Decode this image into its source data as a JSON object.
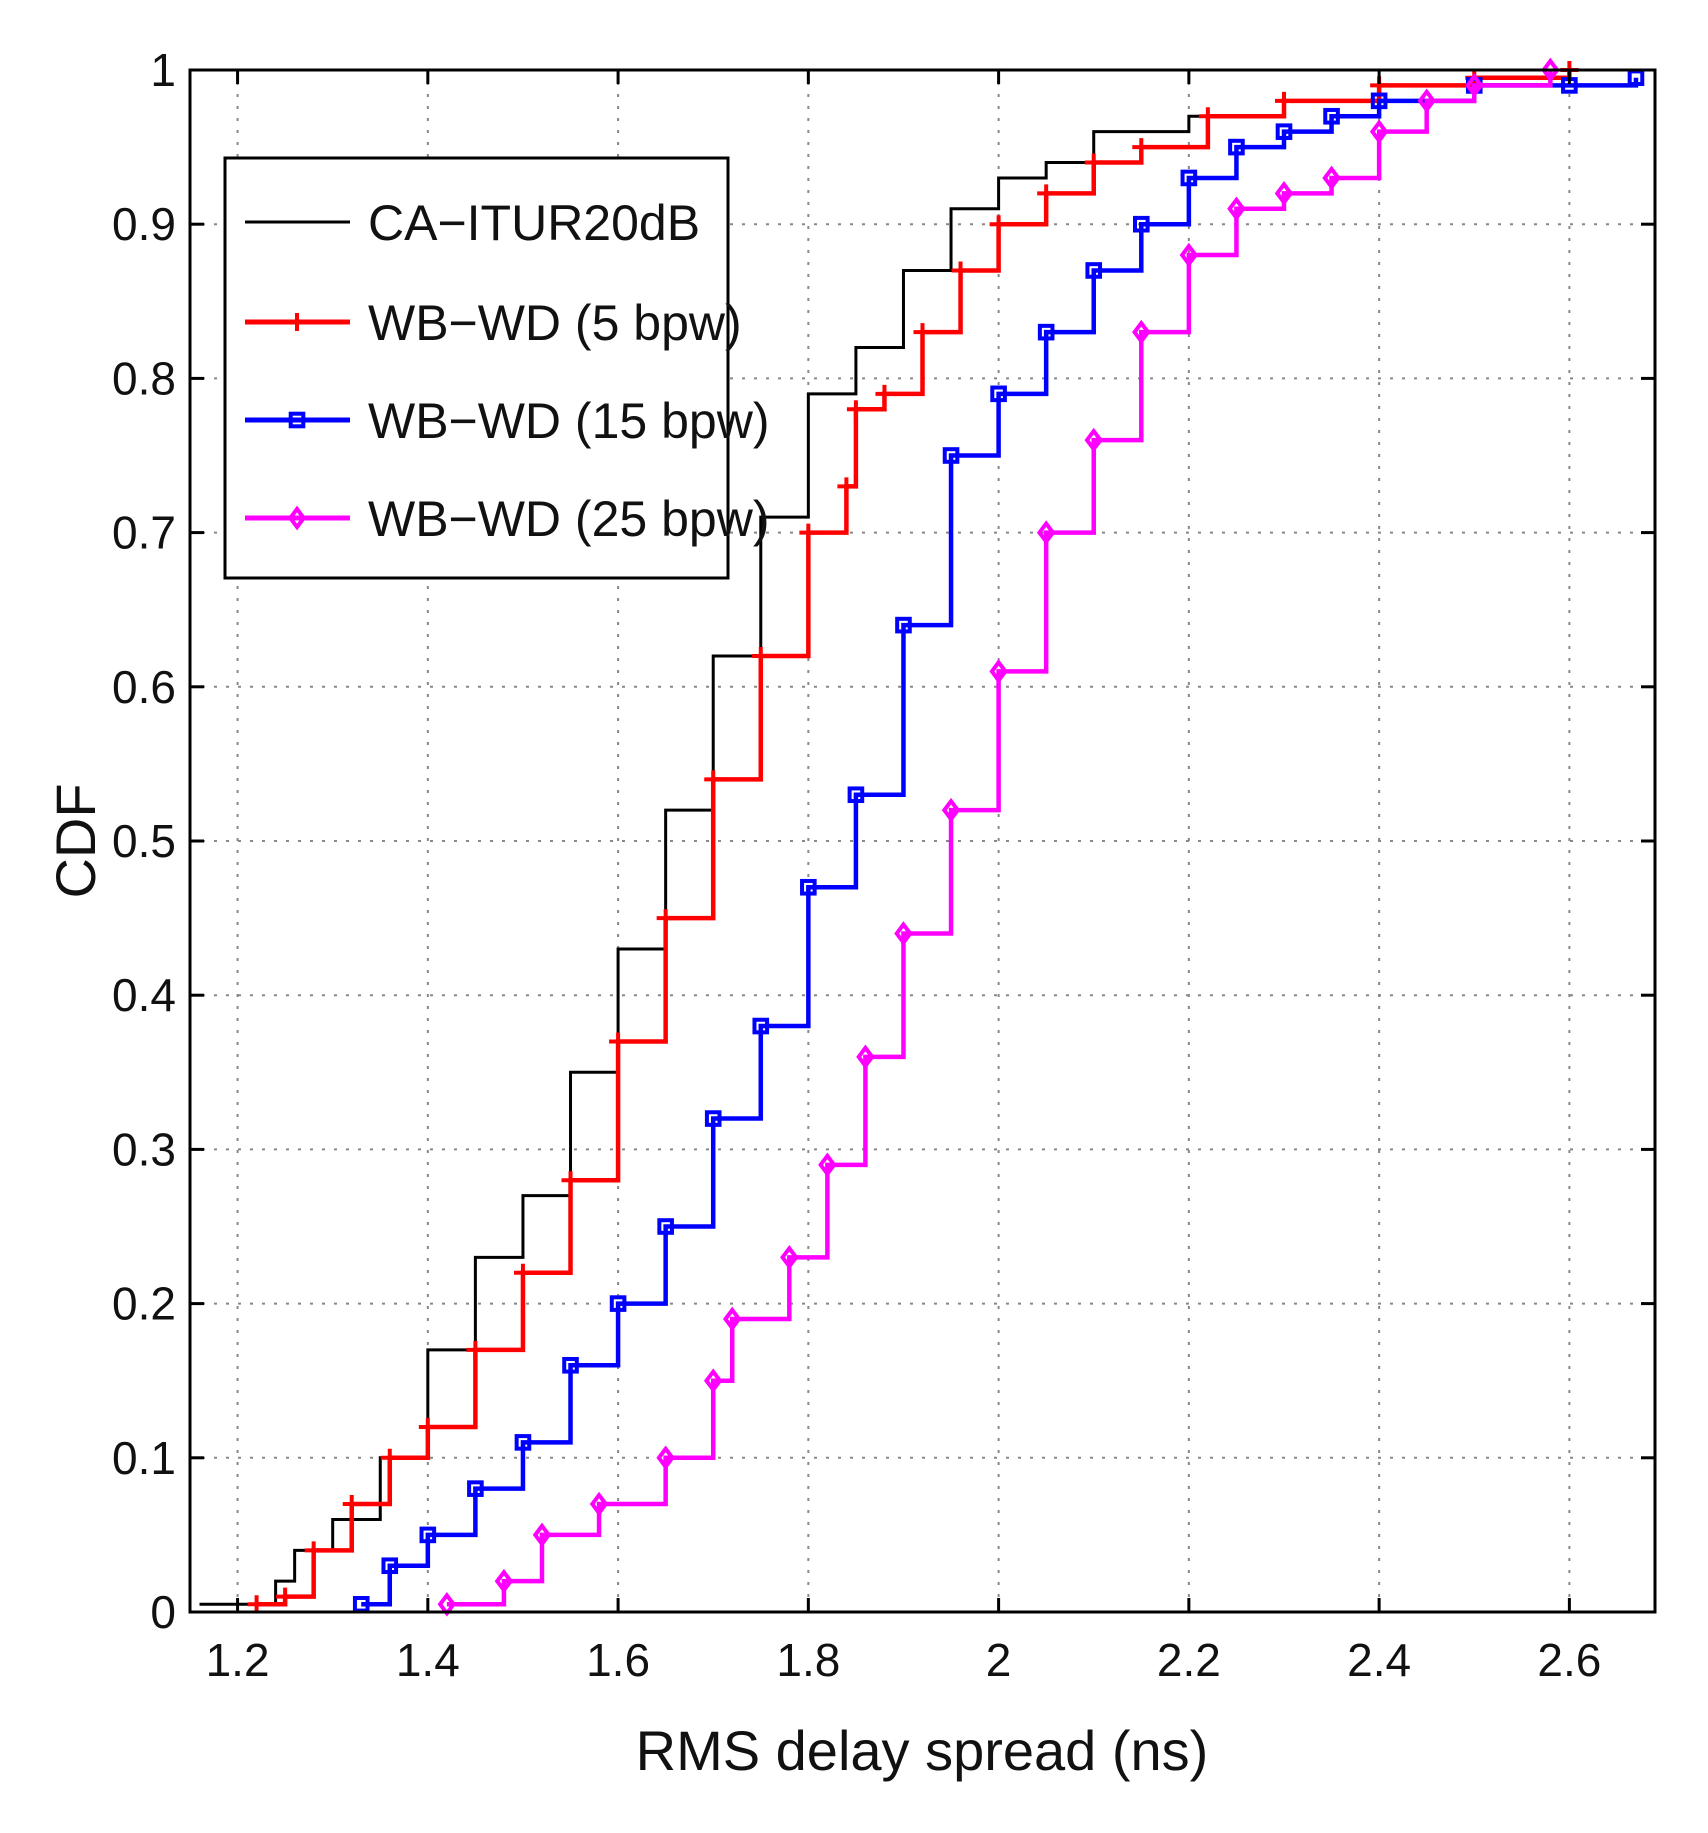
{
  "chart_data": {
    "type": "line",
    "title": "",
    "xlabel": "RMS delay spread (ns)",
    "ylabel": "CDF",
    "xlim": [
      1.15,
      2.69
    ],
    "ylim": [
      0,
      1
    ],
    "xticks": [
      1.2,
      1.4,
      1.6,
      1.8,
      2,
      2.2,
      2.4,
      2.6
    ],
    "xtick_labels": [
      "1.2",
      "1.4",
      "1.6",
      "1.8",
      "2",
      "2.2",
      "2.4",
      "2.6"
    ],
    "yticks": [
      0,
      0.1,
      0.2,
      0.3,
      0.4,
      0.5,
      0.6,
      0.7,
      0.8,
      0.9,
      1
    ],
    "ytick_labels": [
      "0",
      "0.1",
      "0.2",
      "0.3",
      "0.4",
      "0.5",
      "0.6",
      "0.7",
      "0.8",
      "0.9",
      "1"
    ],
    "grid": true,
    "legend_position": "top-left",
    "series": [
      {
        "name": "CA−ITUR20dB",
        "color": "#000000",
        "marker": "none",
        "x": [
          1.16,
          1.24,
          1.26,
          1.3,
          1.35,
          1.4,
          1.45,
          1.5,
          1.55,
          1.6,
          1.65,
          1.7,
          1.75,
          1.8,
          1.85,
          1.9,
          1.95,
          2.0,
          2.05,
          2.1,
          2.2,
          2.3,
          2.4,
          2.5,
          2.6,
          2.68
        ],
        "y": [
          0.005,
          0.02,
          0.04,
          0.06,
          0.1,
          0.17,
          0.23,
          0.27,
          0.35,
          0.43,
          0.52,
          0.62,
          0.71,
          0.79,
          0.82,
          0.87,
          0.91,
          0.93,
          0.94,
          0.96,
          0.97,
          0.98,
          0.99,
          0.995,
          1.0,
          1.0
        ]
      },
      {
        "name": "WB−WD (5 bpw)",
        "color": "#ff0000",
        "marker": "plus",
        "x": [
          1.22,
          1.25,
          1.28,
          1.32,
          1.36,
          1.4,
          1.45,
          1.5,
          1.55,
          1.6,
          1.65,
          1.7,
          1.75,
          1.8,
          1.84,
          1.85,
          1.88,
          1.92,
          1.96,
          2.0,
          2.05,
          2.1,
          2.15,
          2.22,
          2.3,
          2.4,
          2.5,
          2.6
        ],
        "y": [
          0.005,
          0.01,
          0.04,
          0.07,
          0.1,
          0.12,
          0.17,
          0.22,
          0.28,
          0.37,
          0.45,
          0.54,
          0.62,
          0.7,
          0.73,
          0.78,
          0.79,
          0.83,
          0.87,
          0.9,
          0.92,
          0.94,
          0.95,
          0.97,
          0.98,
          0.99,
          0.995,
          1.0
        ]
      },
      {
        "name": "WB−WD (15 bpw)",
        "color": "#0000ff",
        "marker": "square",
        "x": [
          1.33,
          1.36,
          1.4,
          1.45,
          1.5,
          1.55,
          1.6,
          1.65,
          1.7,
          1.75,
          1.8,
          1.85,
          1.9,
          1.95,
          2.0,
          2.05,
          2.1,
          2.15,
          2.2,
          2.25,
          2.3,
          2.35,
          2.4,
          2.5,
          2.6,
          2.67
        ],
        "y": [
          0.005,
          0.03,
          0.05,
          0.08,
          0.11,
          0.16,
          0.2,
          0.25,
          0.32,
          0.38,
          0.47,
          0.53,
          0.64,
          0.75,
          0.79,
          0.83,
          0.87,
          0.9,
          0.93,
          0.95,
          0.96,
          0.97,
          0.98,
          0.99,
          0.99,
          0.995
        ]
      },
      {
        "name": "WB−WD (25 bpw)",
        "color": "#ff00ff",
        "marker": "diamond",
        "x": [
          1.42,
          1.48,
          1.52,
          1.58,
          1.65,
          1.7,
          1.72,
          1.78,
          1.82,
          1.86,
          1.9,
          1.95,
          2.0,
          2.05,
          2.1,
          2.15,
          2.2,
          2.25,
          2.3,
          2.35,
          2.4,
          2.45,
          2.5,
          2.58
        ],
        "y": [
          0.005,
          0.02,
          0.05,
          0.07,
          0.1,
          0.15,
          0.19,
          0.23,
          0.29,
          0.36,
          0.44,
          0.52,
          0.61,
          0.7,
          0.76,
          0.83,
          0.88,
          0.91,
          0.92,
          0.93,
          0.96,
          0.98,
          0.99,
          1.0
        ]
      }
    ]
  }
}
